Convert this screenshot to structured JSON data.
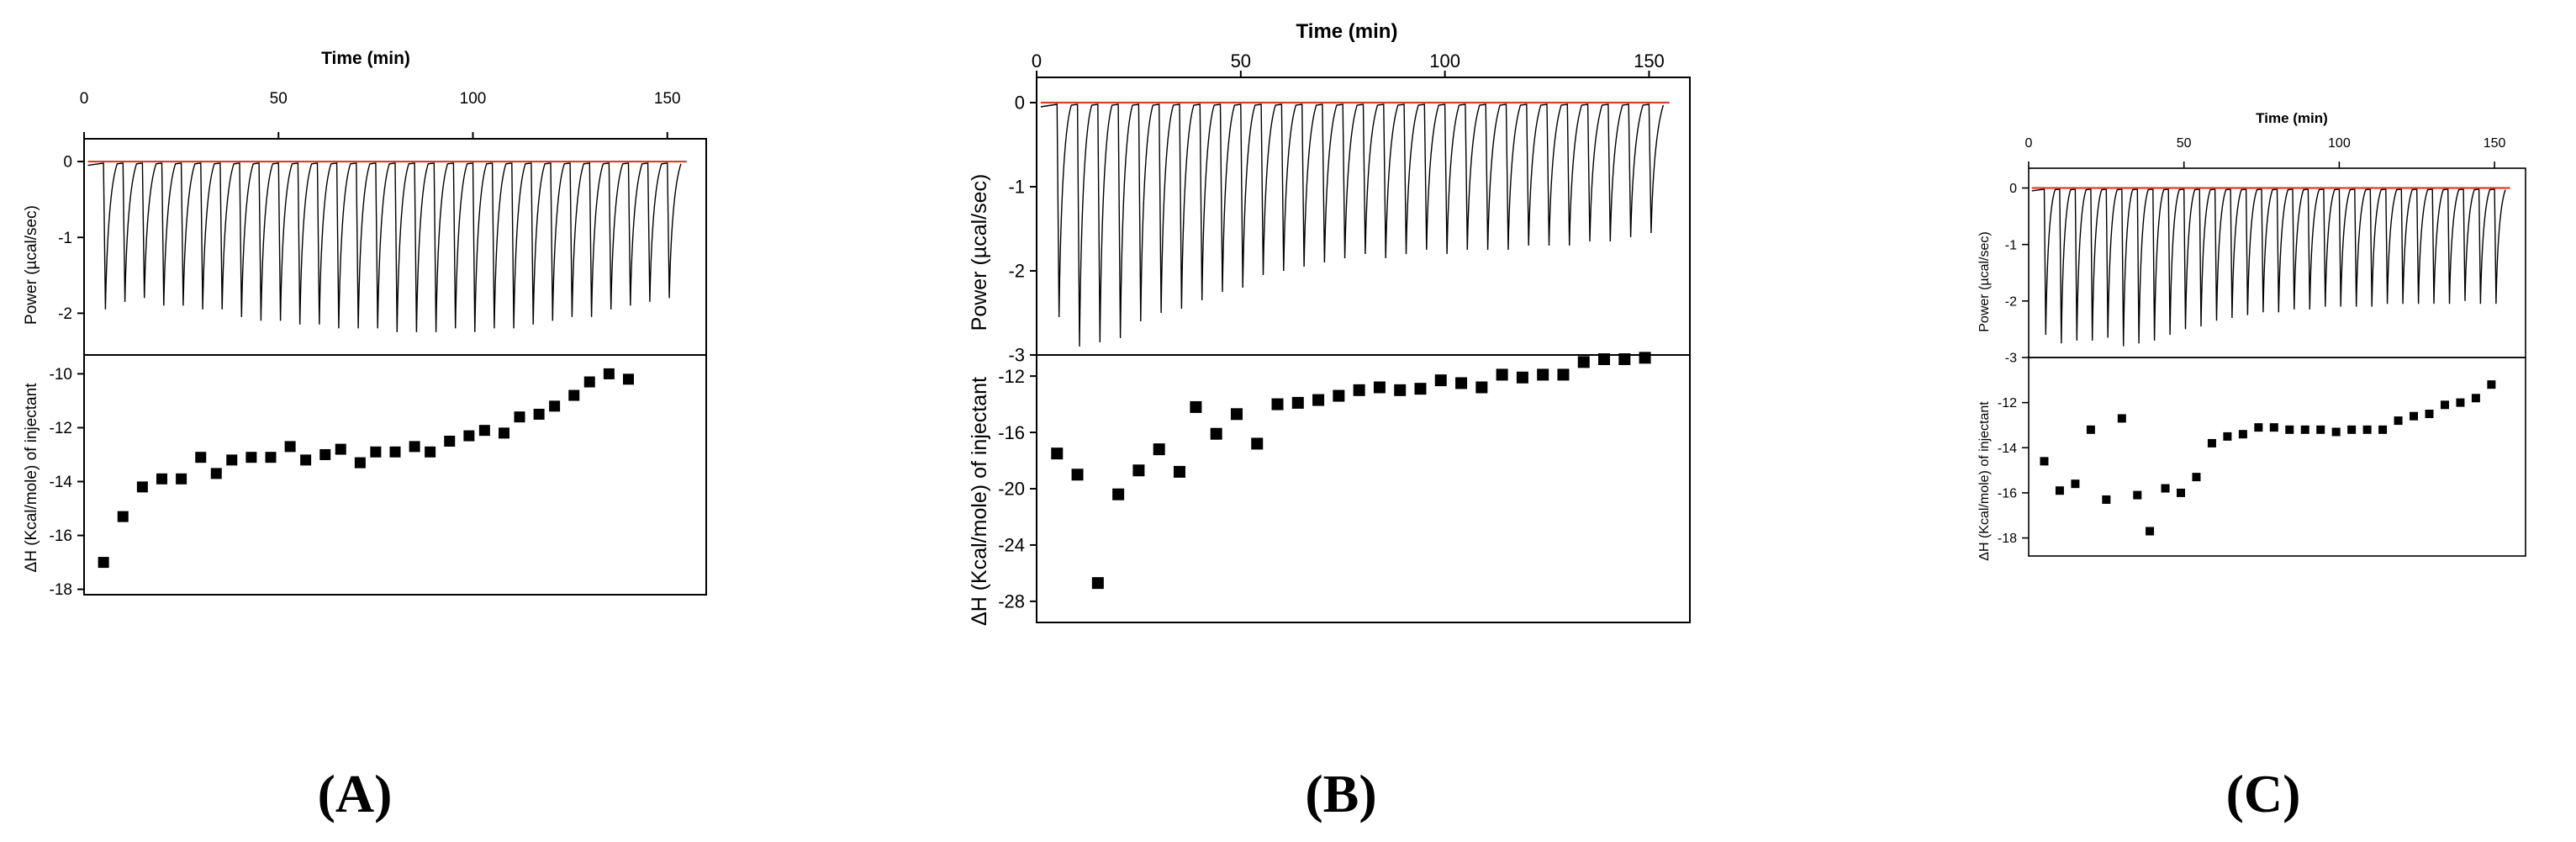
{
  "colors": {
    "baseline": "#d9402a",
    "data": "#000000",
    "frame": "#000000"
  },
  "chart_data": [
    {
      "type": "scatter",
      "panel_label": "(A)",
      "title": "Time (min)",
      "top_ylabel": "Power (µcal/sec)",
      "bottom_ylabel": "ΔH (Kcal/mole) of injectant",
      "xlim": [
        0,
        160
      ],
      "xticks": [
        0,
        50,
        100,
        150
      ],
      "top_ylim": [
        -2.55,
        0.3
      ],
      "top_yticks": [
        0,
        -1,
        -2
      ],
      "bottom_ylim": [
        -18.2,
        -9.3
      ],
      "bottom_yticks": [
        -10,
        -12,
        -14,
        -16,
        -18
      ],
      "injection_times": [
        5,
        10,
        15,
        20,
        25,
        30,
        35,
        40,
        45,
        50,
        55,
        60,
        65,
        70,
        75,
        80,
        85,
        90,
        95,
        100,
        105,
        110,
        115,
        120,
        125,
        130,
        135,
        140,
        145,
        150
      ],
      "peak_depths": [
        -1.95,
        -1.85,
        -1.8,
        -1.9,
        -1.9,
        -1.95,
        -1.95,
        -2.05,
        -2.1,
        -2.1,
        -2.15,
        -2.15,
        -2.2,
        -2.2,
        -2.2,
        -2.25,
        -2.25,
        -2.25,
        -2.2,
        -2.25,
        -2.2,
        -2.2,
        -2.15,
        -2.1,
        -2.05,
        -2.05,
        -1.95,
        -1.9,
        -1.85,
        -1.8
      ],
      "points": [
        [
          5,
          -17
        ],
        [
          10,
          -15.3
        ],
        [
          15,
          -14.2
        ],
        [
          20,
          -13.9
        ],
        [
          25,
          -13.9
        ],
        [
          30,
          -13.1
        ],
        [
          34,
          -13.7
        ],
        [
          38,
          -13.2
        ],
        [
          43,
          -13.1
        ],
        [
          48,
          -13.1
        ],
        [
          53,
          -12.7
        ],
        [
          57,
          -13.2
        ],
        [
          62,
          -13.0
        ],
        [
          66,
          -12.8
        ],
        [
          71,
          -13.3
        ],
        [
          75,
          -12.9
        ],
        [
          80,
          -12.9
        ],
        [
          85,
          -12.7
        ],
        [
          89,
          -12.9
        ],
        [
          94,
          -12.5
        ],
        [
          99,
          -12.3
        ],
        [
          103,
          -12.1
        ],
        [
          108,
          -12.2
        ],
        [
          112,
          -11.6
        ],
        [
          117,
          -11.5
        ],
        [
          121,
          -11.2
        ],
        [
          126,
          -10.8
        ],
        [
          130,
          -10.3
        ],
        [
          135,
          -10.0
        ],
        [
          140,
          -10.2
        ]
      ]
    },
    {
      "type": "scatter",
      "panel_label": "(B)",
      "title": "Time (min)",
      "top_ylabel": "Power (µcal/sec)",
      "bottom_ylabel": "ΔH (Kcal/mole) of injectant",
      "xlim": [
        0,
        160
      ],
      "xticks": [
        0,
        50,
        100,
        150
      ],
      "top_ylim": [
        -3.0,
        0.3
      ],
      "top_yticks": [
        0,
        -1,
        -2,
        -3
      ],
      "bottom_ylim": [
        -29.5,
        -10.5
      ],
      "bottom_yticks": [
        -12,
        -16,
        -20,
        -24,
        -28
      ],
      "injection_times": [
        5,
        10,
        15,
        20,
        25,
        30,
        35,
        40,
        45,
        50,
        55,
        60,
        65,
        70,
        75,
        80,
        85,
        90,
        95,
        100,
        105,
        110,
        115,
        120,
        125,
        130,
        135,
        140,
        145,
        150
      ],
      "peak_depths": [
        -2.55,
        -2.9,
        -2.85,
        -2.8,
        -2.6,
        -2.5,
        -2.45,
        -2.35,
        -2.25,
        -2.2,
        -2.05,
        -2.0,
        -1.95,
        -1.9,
        -1.85,
        -1.8,
        -1.85,
        -1.8,
        -1.75,
        -1.8,
        -1.75,
        -1.75,
        -1.75,
        -1.7,
        -1.7,
        -1.7,
        -1.65,
        -1.65,
        -1.6,
        -1.55
      ],
      "points": [
        [
          5,
          -17.5
        ],
        [
          10,
          -19.0
        ],
        [
          15,
          -26.7
        ],
        [
          20,
          -20.4
        ],
        [
          25,
          -18.7
        ],
        [
          30,
          -17.2
        ],
        [
          35,
          -18.8
        ],
        [
          39,
          -14.2
        ],
        [
          44,
          -16.1
        ],
        [
          49,
          -14.7
        ],
        [
          54,
          -16.8
        ],
        [
          59,
          -14.0
        ],
        [
          64,
          -13.9
        ],
        [
          69,
          -13.7
        ],
        [
          74,
          -13.4
        ],
        [
          79,
          -13.0
        ],
        [
          84,
          -12.8
        ],
        [
          89,
          -13.0
        ],
        [
          94,
          -12.9
        ],
        [
          99,
          -12.3
        ],
        [
          104,
          -12.5
        ],
        [
          109,
          -12.8
        ],
        [
          114,
          -11.9
        ],
        [
          119,
          -12.1
        ],
        [
          124,
          -11.9
        ],
        [
          129,
          -11.9
        ],
        [
          134,
          -11.0
        ],
        [
          139,
          -10.8
        ],
        [
          144,
          -10.8
        ],
        [
          149,
          -10.7
        ]
      ]
    },
    {
      "type": "scatter",
      "panel_label": "(C)",
      "title": "Time (min)",
      "top_ylabel": "Power (µcal/sec)",
      "bottom_ylabel": "ΔH (Kcal/mole) of injectant",
      "xlim": [
        0,
        160
      ],
      "xticks": [
        0,
        50,
        100,
        150
      ],
      "top_ylim": [
        -3.0,
        0.35
      ],
      "top_yticks": [
        0,
        -1,
        -2,
        -3
      ],
      "bottom_ylim": [
        -18.8,
        -10.0
      ],
      "bottom_yticks": [
        -12,
        -14,
        -16,
        -18
      ],
      "injection_times": [
        5,
        10,
        15,
        20,
        25,
        30,
        35,
        40,
        45,
        50,
        55,
        60,
        65,
        70,
        75,
        80,
        85,
        90,
        95,
        100,
        105,
        110,
        115,
        120,
        125,
        130,
        135,
        140,
        145,
        150
      ],
      "peak_depths": [
        -2.6,
        -2.75,
        -2.7,
        -2.7,
        -2.65,
        -2.8,
        -2.75,
        -2.7,
        -2.6,
        -2.5,
        -2.45,
        -2.35,
        -2.3,
        -2.25,
        -2.2,
        -2.2,
        -2.15,
        -2.15,
        -2.1,
        -2.1,
        -2.1,
        -2.1,
        -2.05,
        -2.05,
        -2.05,
        -2.05,
        -2.05,
        -2.0,
        -2.05,
        -2.05
      ],
      "points": [
        [
          5,
          -14.6
        ],
        [
          10,
          -15.9
        ],
        [
          15,
          -15.6
        ],
        [
          20,
          -13.2
        ],
        [
          25,
          -16.3
        ],
        [
          30,
          -12.7
        ],
        [
          35,
          -16.1
        ],
        [
          39,
          -17.7
        ],
        [
          44,
          -15.8
        ],
        [
          49,
          -16.0
        ],
        [
          54,
          -15.3
        ],
        [
          59,
          -13.8
        ],
        [
          64,
          -13.5
        ],
        [
          69,
          -13.4
        ],
        [
          74,
          -13.1
        ],
        [
          79,
          -13.1
        ],
        [
          84,
          -13.2
        ],
        [
          89,
          -13.2
        ],
        [
          94,
          -13.2
        ],
        [
          99,
          -13.3
        ],
        [
          104,
          -13.2
        ],
        [
          109,
          -13.2
        ],
        [
          114,
          -13.2
        ],
        [
          119,
          -12.8
        ],
        [
          124,
          -12.6
        ],
        [
          129,
          -12.5
        ],
        [
          134,
          -12.1
        ],
        [
          139,
          -12.0
        ],
        [
          144,
          -11.8
        ],
        [
          149,
          -11.2
        ]
      ]
    }
  ]
}
